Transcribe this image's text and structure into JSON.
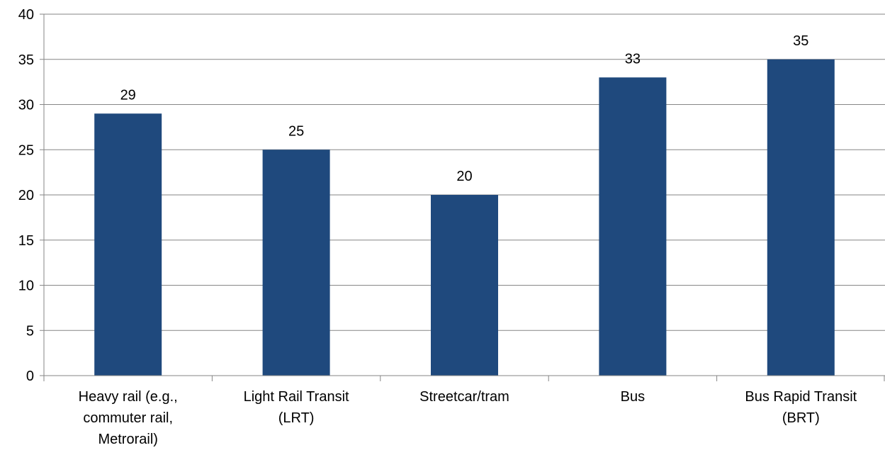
{
  "chart_data": {
    "type": "bar",
    "categories": [
      "Heavy rail (e.g., commuter rail, Metrorail)",
      "Light Rail Transit (LRT)",
      "Streetcar/tram",
      "Bus",
      "Bus Rapid Transit (BRT)"
    ],
    "category_lines": [
      [
        "Heavy rail (e.g.,",
        "commuter rail,",
        "Metrorail)"
      ],
      [
        "Light Rail Transit",
        "(LRT)"
      ],
      [
        "Streetcar/tram"
      ],
      [
        "Bus"
      ],
      [
        "Bus Rapid Transit",
        "(BRT)"
      ]
    ],
    "values": [
      29,
      25,
      20,
      33,
      35
    ],
    "data_labels": [
      "29",
      "25",
      "20",
      "33",
      "35"
    ],
    "title": "",
    "xlabel": "",
    "ylabel": "",
    "ylim": [
      0,
      40
    ],
    "yticks": [
      0,
      5,
      10,
      15,
      20,
      25,
      30,
      35,
      40
    ],
    "grid": true,
    "legend": "none",
    "bar_color": "#1f497d",
    "grid_color": "#868686",
    "axis_color": "#868686"
  }
}
